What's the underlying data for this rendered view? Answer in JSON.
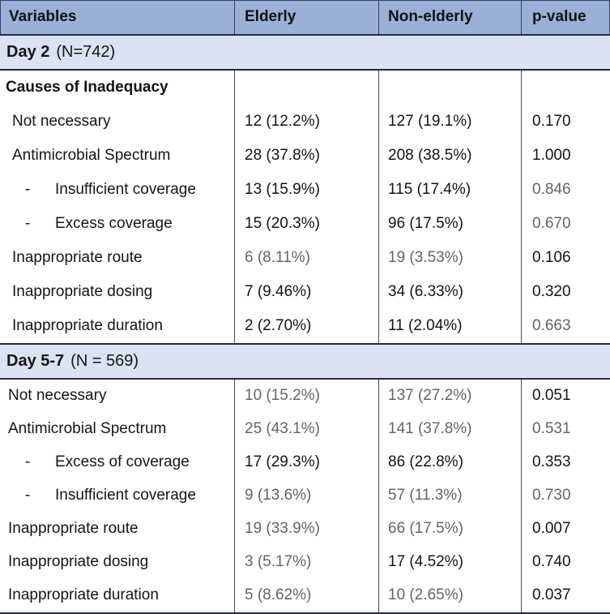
{
  "colors": {
    "header_bg": "#9AB0D8",
    "band_bg": "#DBE2F2",
    "border_dark": "#232C45",
    "header_line": "#33406A",
    "grid_line": "#4D4D4D",
    "text": "#151515",
    "muted": "#646464"
  },
  "chart_data": {
    "type": "table",
    "columns": [
      "Variables",
      "Elderly",
      "Non-elderly",
      "p-value"
    ],
    "sections": [
      {
        "title": "Day 2",
        "note": "(N=742)",
        "rows": [
          {
            "label": "Causes of Inadequacy",
            "level": 0,
            "elderly": "",
            "non_elderly": "",
            "p_value": "",
            "muted": []
          },
          {
            "label": "Not necessary",
            "level": 1,
            "elderly": "12 (12.2%)",
            "non_elderly": "127 (19.1%)",
            "p_value": "0.170",
            "muted": []
          },
          {
            "label": "Antimicrobial Spectrum",
            "level": 1,
            "elderly": "28 (37.8%)",
            "non_elderly": "208 (38.5%)",
            "p_value": "1.000",
            "muted": []
          },
          {
            "label": "Insufficient coverage",
            "level": 2,
            "elderly": "13 (15.9%)",
            "non_elderly": "115 (17.4%)",
            "p_value": "0.846",
            "muted": [
              "p_value"
            ]
          },
          {
            "label": "Excess coverage",
            "level": 2,
            "elderly": "15 (20.3%)",
            "non_elderly": "96 (17.5%)",
            "p_value": "0.670",
            "muted": [
              "p_value"
            ]
          },
          {
            "label": "Inappropriate route",
            "level": 1,
            "elderly": "6 (8.11%)",
            "non_elderly": "19 (3.53%)",
            "p_value": "0.106",
            "muted": [
              "elderly",
              "non_elderly"
            ]
          },
          {
            "label": "Inappropriate dosing",
            "level": 1,
            "elderly": "7 (9.46%)",
            "non_elderly": "34 (6.33%)",
            "p_value": "0.320",
            "muted": []
          },
          {
            "label": "Inappropriate duration",
            "level": 1,
            "elderly": "2 (2.70%)",
            "non_elderly": "11 (2.04%)",
            "p_value": "0.663",
            "muted": [
              "p_value"
            ]
          }
        ]
      },
      {
        "title": "Day 5-7",
        "note": "(N = 569)",
        "rows": [
          {
            "label": "Not necessary",
            "level": 1,
            "elderly": "10 (15.2%)",
            "non_elderly": "137 (27.2%)",
            "p_value": "0.051",
            "muted": [
              "elderly",
              "non_elderly"
            ]
          },
          {
            "label": "Antimicrobial Spectrum",
            "level": 1,
            "elderly": "25 (43.1%)",
            "non_elderly": "141 (37.8%)",
            "p_value": "0.531",
            "muted": [
              "elderly",
              "non_elderly",
              "p_value"
            ]
          },
          {
            "label": "Excess of coverage",
            "level": 2,
            "elderly": "17 (29.3%)",
            "non_elderly": "86 (22.8%)",
            "p_value": "0.353",
            "muted": []
          },
          {
            "label": "Insufficient coverage",
            "level": 2,
            "elderly": "9 (13.6%)",
            "non_elderly": "57 (11.3%)",
            "p_value": "0.730",
            "muted": [
              "elderly",
              "non_elderly",
              "p_value"
            ]
          },
          {
            "label": "Inappropriate route",
            "level": 1,
            "elderly": "19 (33.9%)",
            "non_elderly": "66 (17.5%)",
            "p_value": "0.007",
            "muted": [
              "elderly",
              "non_elderly"
            ]
          },
          {
            "label": "Inappropriate dosing",
            "level": 1,
            "elderly": "3 (5.17%)",
            "non_elderly": "17 (4.52%)",
            "p_value": "0.740",
            "muted": [
              "elderly"
            ]
          },
          {
            "label": "Inappropriate duration",
            "level": 1,
            "elderly": "5 (8.62%)",
            "non_elderly": "10 (2.65%)",
            "p_value": "0.037",
            "muted": [
              "elderly",
              "non_elderly"
            ]
          }
        ]
      }
    ]
  }
}
